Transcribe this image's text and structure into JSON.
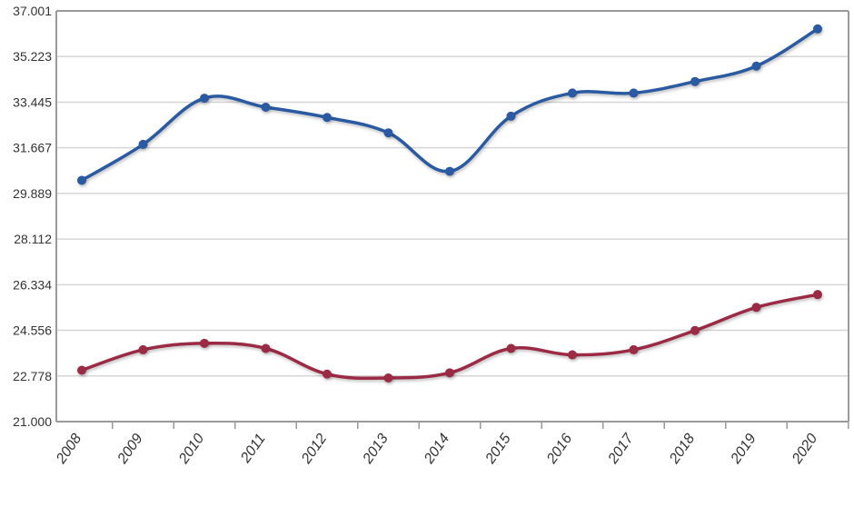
{
  "chart_data": {
    "type": "line",
    "title": "",
    "xlabel": "",
    "ylabel": "",
    "categories": [
      "2008",
      "2009",
      "2010",
      "2011",
      "2012",
      "2013",
      "2014",
      "2015",
      "2016",
      "2017",
      "2018",
      "2019",
      "2020"
    ],
    "yticks": [
      "21.000",
      "22.778",
      "24.556",
      "26.334",
      "28.112",
      "29.889",
      "31.667",
      "33.445",
      "35.223",
      "37.001"
    ],
    "ylim": [
      21.0,
      37.001
    ],
    "grid": true,
    "legend": "none",
    "series": [
      {
        "color": "#2b5aa1",
        "values": [
          30.4,
          31.8,
          33.6,
          33.25,
          32.85,
          32.25,
          30.75,
          32.9,
          33.8,
          33.8,
          34.25,
          34.85,
          36.3
        ]
      },
      {
        "color": "#9b2a45",
        "values": [
          23.0,
          23.8,
          24.05,
          23.85,
          22.85,
          22.7,
          22.9,
          23.85,
          23.6,
          23.8,
          24.55,
          25.45,
          25.95
        ]
      }
    ]
  }
}
